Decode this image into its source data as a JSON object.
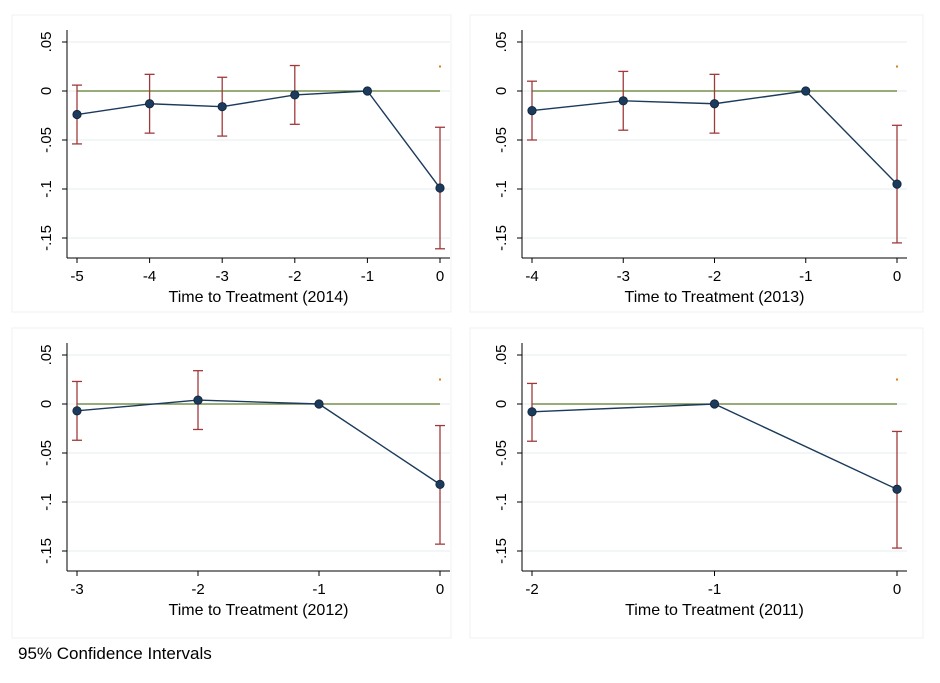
{
  "note": "95% Confidence Intervals",
  "colors": {
    "line": "#1b3a5c",
    "point": "#1b3a5c",
    "ci": "#a03a3a",
    "zero_line": "#5a7a2a",
    "grid": "#e6ecef",
    "panel_border": "#eef1f3",
    "stray_mark": "#e07b20"
  },
  "chart_data": [
    {
      "type": "line",
      "xlabel": "Time to Treatment (2014)",
      "ylabel": "",
      "x": [
        -5,
        -4,
        -3,
        -2,
        -1,
        0
      ],
      "xticks": [
        "-5",
        "-4",
        "-3",
        "-2",
        "-1",
        "0"
      ],
      "yticks": [
        ".05",
        "0",
        "-.05",
        "-.1",
        "-.15"
      ],
      "ylim": [
        -0.17,
        0.055
      ],
      "grid": true,
      "series": [
        {
          "values": [
            -0.024,
            -0.013,
            -0.016,
            -0.004,
            0.0,
            -0.099
          ],
          "ci_lower": [
            -0.054,
            -0.043,
            -0.046,
            -0.034,
            null,
            -0.161
          ],
          "ci_upper": [
            0.006,
            0.017,
            0.014,
            0.026,
            null,
            -0.037
          ]
        }
      ],
      "reference_line": 0
    },
    {
      "type": "line",
      "xlabel": "Time to Treatment (2013)",
      "ylabel": "",
      "x": [
        -4,
        -3,
        -2,
        -1,
        0
      ],
      "xticks": [
        "-4",
        "-3",
        "-2",
        "-1",
        "0"
      ],
      "yticks": [
        ".05",
        "0",
        "-.05",
        "-.1",
        "-.15"
      ],
      "ylim": [
        -0.17,
        0.055
      ],
      "grid": true,
      "series": [
        {
          "values": [
            -0.02,
            -0.01,
            -0.013,
            0.0,
            -0.095
          ],
          "ci_lower": [
            -0.05,
            -0.04,
            -0.043,
            null,
            -0.155
          ],
          "ci_upper": [
            0.01,
            0.02,
            0.017,
            null,
            -0.035
          ]
        }
      ],
      "reference_line": 0
    },
    {
      "type": "line",
      "xlabel": "Time to Treatment (2012)",
      "ylabel": "",
      "x": [
        -3,
        -2,
        -1,
        0
      ],
      "xticks": [
        "-3",
        "-2",
        "-1",
        "0"
      ],
      "yticks": [
        ".05",
        "0",
        "-.05",
        "-.1",
        "-.15"
      ],
      "ylim": [
        -0.17,
        0.055
      ],
      "grid": true,
      "series": [
        {
          "values": [
            -0.007,
            0.004,
            0.0,
            -0.082
          ],
          "ci_lower": [
            -0.037,
            -0.026,
            null,
            -0.143
          ],
          "ci_upper": [
            0.023,
            0.034,
            null,
            -0.022
          ]
        }
      ],
      "reference_line": 0
    },
    {
      "type": "line",
      "xlabel": "Time to Treatment (2011)",
      "ylabel": "",
      "x": [
        -2,
        -1,
        0
      ],
      "xticks": [
        "-2",
        "-1",
        "0"
      ],
      "yticks": [
        ".05",
        "0",
        "-.05",
        "-.1",
        "-.15"
      ],
      "ylim": [
        -0.17,
        0.055
      ],
      "grid": true,
      "series": [
        {
          "values": [
            -0.008,
            0.0,
            -0.087
          ],
          "ci_lower": [
            -0.038,
            null,
            -0.147
          ],
          "ci_upper": [
            0.021,
            null,
            -0.028
          ]
        }
      ],
      "reference_line": 0
    }
  ]
}
